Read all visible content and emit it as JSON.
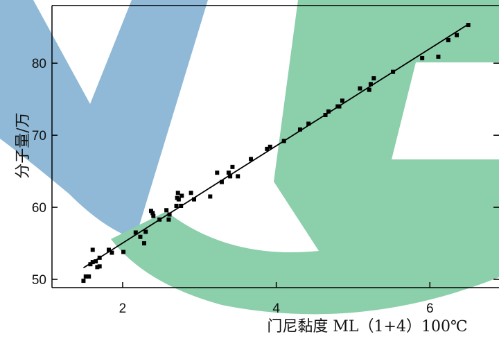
{
  "chart_data": {
    "type": "scatter",
    "x_label": "门尼黏度 ML（1+4）100℃",
    "y_label": "分子量/万",
    "xlim": [
      1.08,
      6.9
    ],
    "ylim": [
      48.85,
      88
    ],
    "xticks": [
      2,
      4,
      6
    ],
    "yticks": [
      50,
      60,
      70,
      80
    ],
    "series": [
      {
        "type": "scatter",
        "color": "#000000",
        "x": [
          1.49,
          1.52,
          1.56,
          1.58,
          1.61,
          1.61,
          1.65,
          1.67,
          1.7,
          1.7,
          1.82,
          1.86,
          2.01,
          2.17,
          2.23,
          2.28,
          2.3,
          2.37,
          2.39,
          2.4,
          2.48,
          2.57,
          2.6,
          2.61,
          2.7,
          2.71,
          2.72,
          2.73,
          2.77,
          2.76,
          2.89,
          2.93,
          3.14,
          3.23,
          3.29,
          3.38,
          3.4,
          3.43,
          3.5,
          3.67,
          3.88,
          3.92,
          4.1,
          4.31,
          4.42,
          4.64,
          4.68,
          4.8,
          4.82,
          4.86,
          5.09,
          5.21,
          5.23,
          5.27,
          5.52,
          5.9,
          6.11,
          6.24,
          6.35,
          6.5
        ],
        "values": [
          49.8,
          50.4,
          50.4,
          52.1,
          54.1,
          52.4,
          52.5,
          51.7,
          51.8,
          53.0,
          54.1,
          53.7,
          53.8,
          56.5,
          55.9,
          55.0,
          56.6,
          59.5,
          59.2,
          58.8,
          58.3,
          59.6,
          58.3,
          59.0,
          60.2,
          61.3,
          62.0,
          61.1,
          61.6,
          60.2,
          62.0,
          61.1,
          61.5,
          64.8,
          63.5,
          64.8,
          64.3,
          65.6,
          64.3,
          66.7,
          68.1,
          68.4,
          69.2,
          70.8,
          71.6,
          72.8,
          73.3,
          74.0,
          74.0,
          74.8,
          76.5,
          76.3,
          77.1,
          77.9,
          78.8,
          80.7,
          80.9,
          83.2,
          83.9,
          85.3
        ]
      },
      {
        "type": "line",
        "color": "#000000",
        "x": [
          1.49,
          6.5
        ],
        "values": [
          51.6,
          85.4
        ]
      }
    ]
  }
}
